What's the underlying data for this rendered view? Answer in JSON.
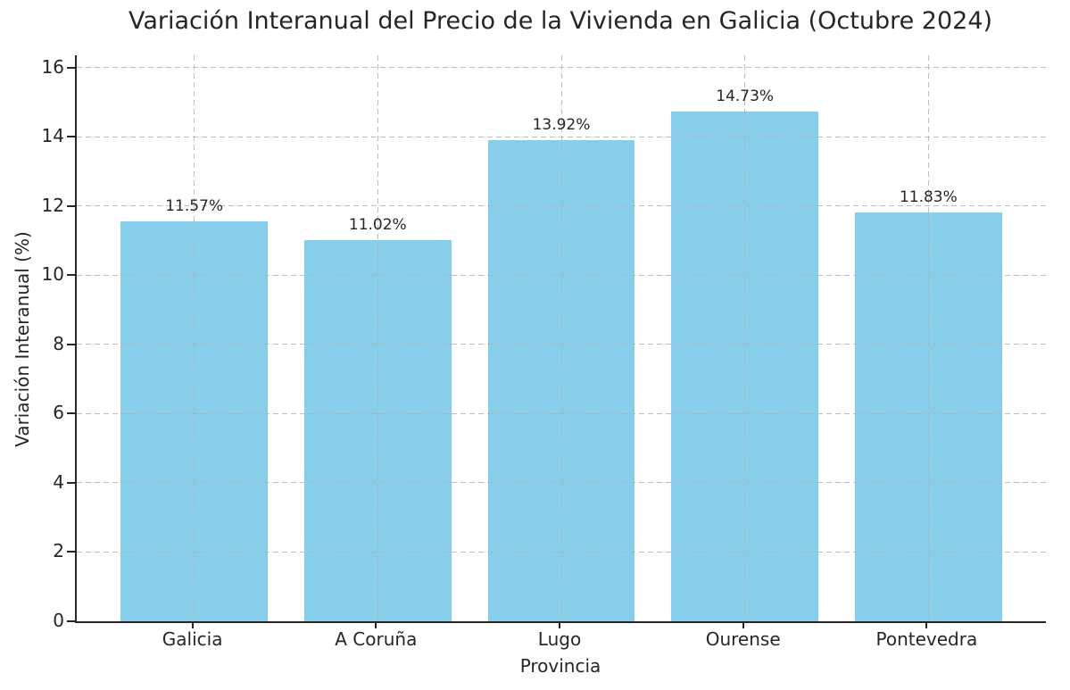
{
  "chart_data": {
    "type": "bar",
    "title": "Variación Interanual del Precio de la Vivienda en Galicia (Octubre 2024)",
    "xlabel": "Provincia",
    "ylabel": "Variación Interanual (%)",
    "categories": [
      "Galicia",
      "A Coruña",
      "Lugo",
      "Ourense",
      "Pontevedra"
    ],
    "values": [
      11.57,
      11.02,
      13.92,
      14.73,
      11.83
    ],
    "value_labels": [
      "11.57%",
      "11.02%",
      "13.92%",
      "14.73%",
      "11.83%"
    ],
    "yticks": [
      0,
      2,
      4,
      6,
      8,
      10,
      12,
      14,
      16
    ],
    "ylim": [
      0,
      16.36
    ],
    "bar_color": "#87CEEB",
    "bar_width_fraction": 0.8,
    "grid": true,
    "grid_linestyle": "dashed",
    "grid_color": "#b2b2b2",
    "legend_position": "none"
  }
}
